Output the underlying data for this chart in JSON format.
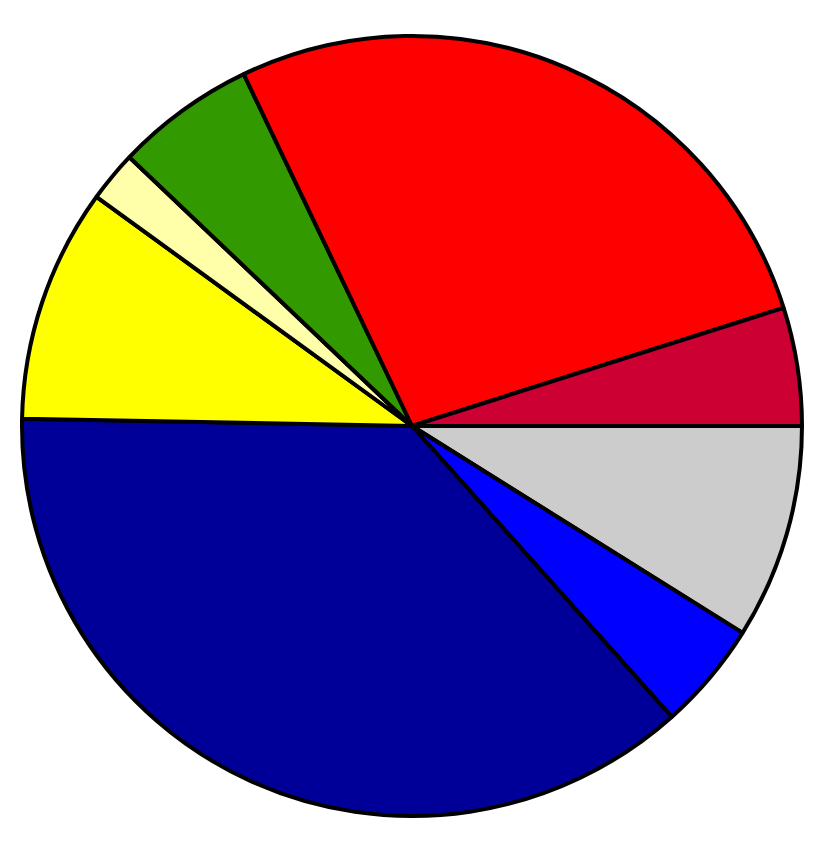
{
  "chart_data": {
    "type": "pie",
    "categories": [
      null,
      null,
      null,
      null,
      null,
      null,
      null,
      null
    ],
    "values": [
      8.9,
      4.5,
      36.9,
      9.7,
      2.1,
      5.8,
      27.2,
      4.9
    ],
    "colors": [
      "#cccccc",
      "#0000ff",
      "#000099",
      "#ffff00",
      "#ffffaa",
      "#339900",
      "#ff0000",
      "#cc0033"
    ],
    "legend": false
  }
}
